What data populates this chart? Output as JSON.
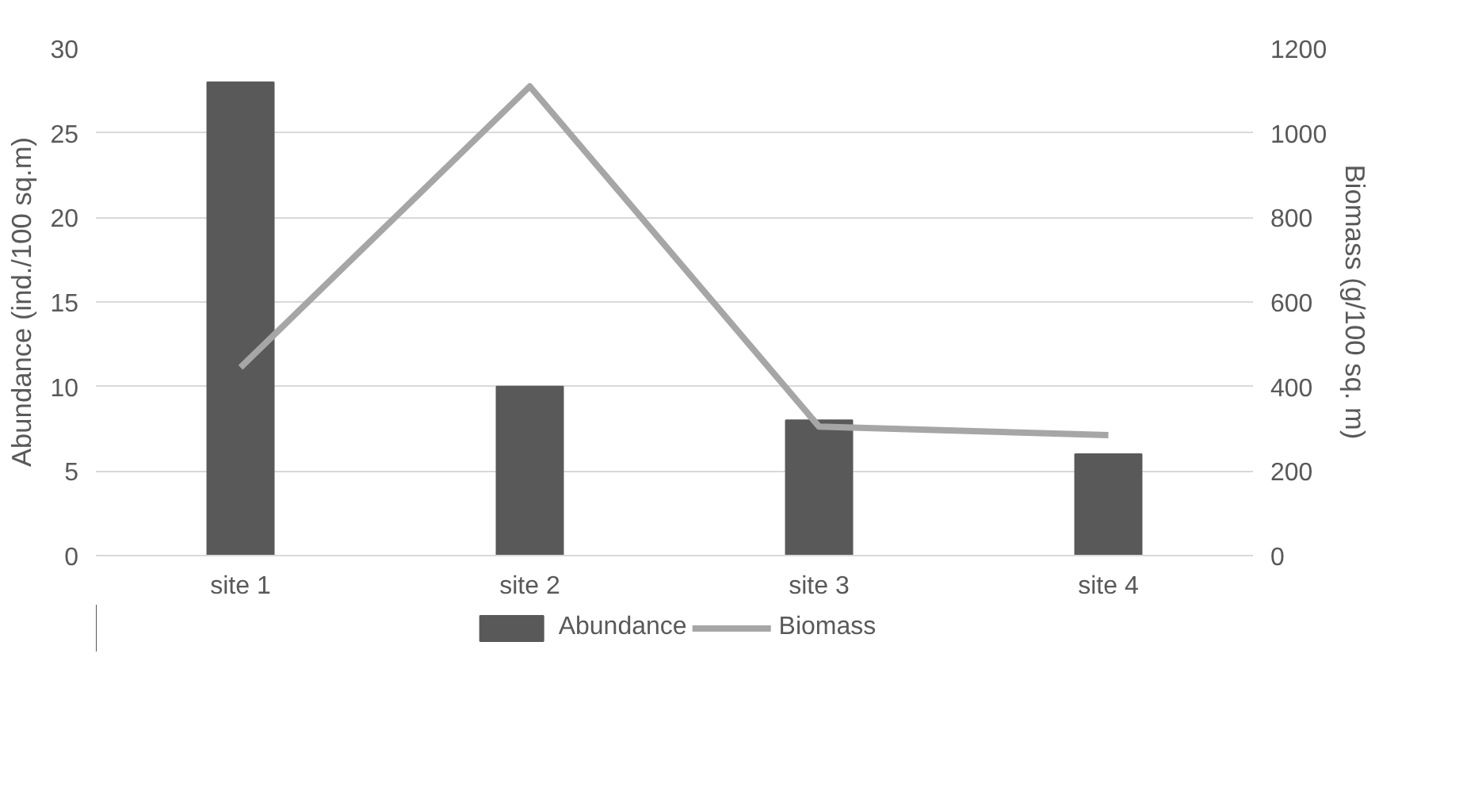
{
  "chart_data": {
    "type": "bar",
    "categories": [
      "site 1",
      "site 2",
      "site 3",
      "site 4"
    ],
    "ylabel": "Abundance (ind./100 sq.m)",
    "y2label": "Biomass (g/100 sq. m)",
    "ylim": [
      0,
      30
    ],
    "yticks": [
      0,
      5,
      10,
      15,
      20,
      25,
      30
    ],
    "y2lim": [
      0,
      1200
    ],
    "y2ticks": [
      0,
      200,
      400,
      600,
      800,
      1000,
      1200
    ],
    "grid": "y",
    "legend": "bottom",
    "series": [
      {
        "name": "Abundance",
        "color": "#595959",
        "values": [
          28,
          10,
          8,
          6
        ]
      },
      {
        "name": "Biomass",
        "type": "line",
        "axis": "y2",
        "color": "#a6a6a6",
        "values": [
          445,
          1110,
          305,
          285
        ]
      }
    ]
  }
}
